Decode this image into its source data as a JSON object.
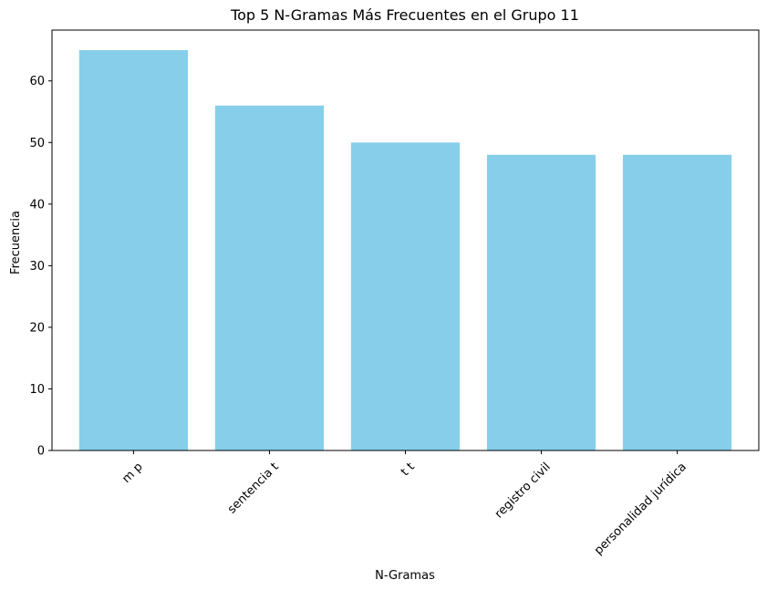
{
  "chart_data": {
    "type": "bar",
    "title": "Top 5 N-Gramas Más Frecuentes en el Grupo 11",
    "xlabel": "N-Gramas",
    "ylabel": "Frecuencia",
    "categories": [
      "m p",
      "sentencia t",
      "t t",
      "registro civil",
      "personalidad jurídica"
    ],
    "values": [
      65,
      56,
      50,
      48,
      48
    ],
    "ylim": [
      0,
      68.25
    ],
    "yticks": [
      0,
      10,
      20,
      30,
      40,
      50,
      60
    ],
    "ytick_labels": [
      "0",
      "10",
      "20",
      "30",
      "40",
      "50",
      "60"
    ],
    "xtick_rotation": 45,
    "bar_color": "#87CEEB",
    "grid": false,
    "legend": "none"
  }
}
